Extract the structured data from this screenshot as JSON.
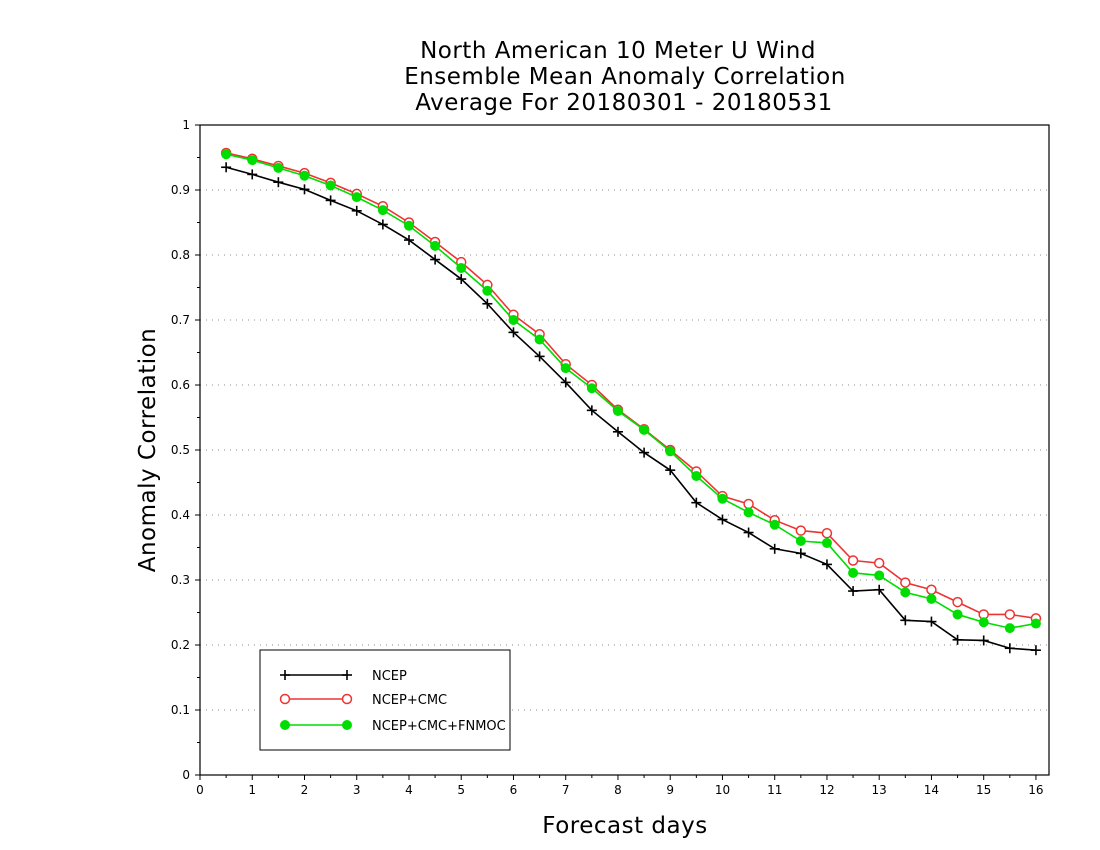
{
  "chart_data": {
    "type": "line",
    "title_lines": [
      "North American 10 Meter U Wind",
      "Ensemble Mean Anomaly Correlation",
      "Average For 20180301 - 20180531"
    ],
    "xlabel": "Forecast days",
    "ylabel": "Anomaly Correlation",
    "xlim": [
      0,
      16.25
    ],
    "ylim": [
      0,
      1
    ],
    "x_ticks": [
      "0",
      "1",
      "2",
      "3",
      "4",
      "5",
      "6",
      "7",
      "8",
      "9",
      "10",
      "11",
      "12",
      "13",
      "14",
      "15",
      "16"
    ],
    "y_ticks": [
      "0",
      "0.1",
      "0.2",
      "0.3",
      "0.4",
      "0.5",
      "0.6",
      "0.7",
      "0.8",
      "0.9",
      "1"
    ],
    "grid": "horizontal dotted",
    "legend_position": "bottom-left",
    "x": [
      0.5,
      1,
      1.5,
      2,
      2.5,
      3,
      3.5,
      4,
      4.5,
      5,
      5.5,
      6,
      6.5,
      7,
      7.5,
      8,
      8.5,
      9,
      9.5,
      10,
      10.5,
      11,
      11.5,
      12,
      12.5,
      13,
      13.5,
      14,
      14.5,
      15,
      15.5,
      16
    ],
    "series": [
      {
        "name": "NCEP",
        "color": "#000000",
        "marker": "plus",
        "values": [
          0.935,
          0.924,
          0.912,
          0.901,
          0.884,
          0.868,
          0.847,
          0.823,
          0.793,
          0.763,
          0.725,
          0.681,
          0.644,
          0.604,
          0.561,
          0.528,
          0.496,
          0.469,
          0.419,
          0.393,
          0.373,
          0.348,
          0.341,
          0.324,
          0.283,
          0.285,
          0.238,
          0.236,
          0.208,
          0.207,
          0.195,
          0.192
        ]
      },
      {
        "name": "NCEP+CMC",
        "color": "#ee3333",
        "marker": "open-circle",
        "values": [
          0.957,
          0.948,
          0.937,
          0.926,
          0.911,
          0.894,
          0.875,
          0.85,
          0.82,
          0.789,
          0.754,
          0.708,
          0.678,
          0.632,
          0.6,
          0.562,
          0.532,
          0.5,
          0.467,
          0.429,
          0.417,
          0.392,
          0.376,
          0.372,
          0.33,
          0.326,
          0.296,
          0.285,
          0.266,
          0.247,
          0.247,
          0.241
        ]
      },
      {
        "name": "NCEP+CMC+FNMOC",
        "color": "#00dd00",
        "marker": "filled-circle",
        "values": [
          0.955,
          0.946,
          0.934,
          0.922,
          0.907,
          0.889,
          0.869,
          0.845,
          0.814,
          0.78,
          0.745,
          0.7,
          0.67,
          0.626,
          0.595,
          0.56,
          0.531,
          0.498,
          0.46,
          0.425,
          0.404,
          0.385,
          0.36,
          0.357,
          0.311,
          0.307,
          0.281,
          0.271,
          0.247,
          0.235,
          0.226,
          0.233
        ]
      }
    ]
  }
}
